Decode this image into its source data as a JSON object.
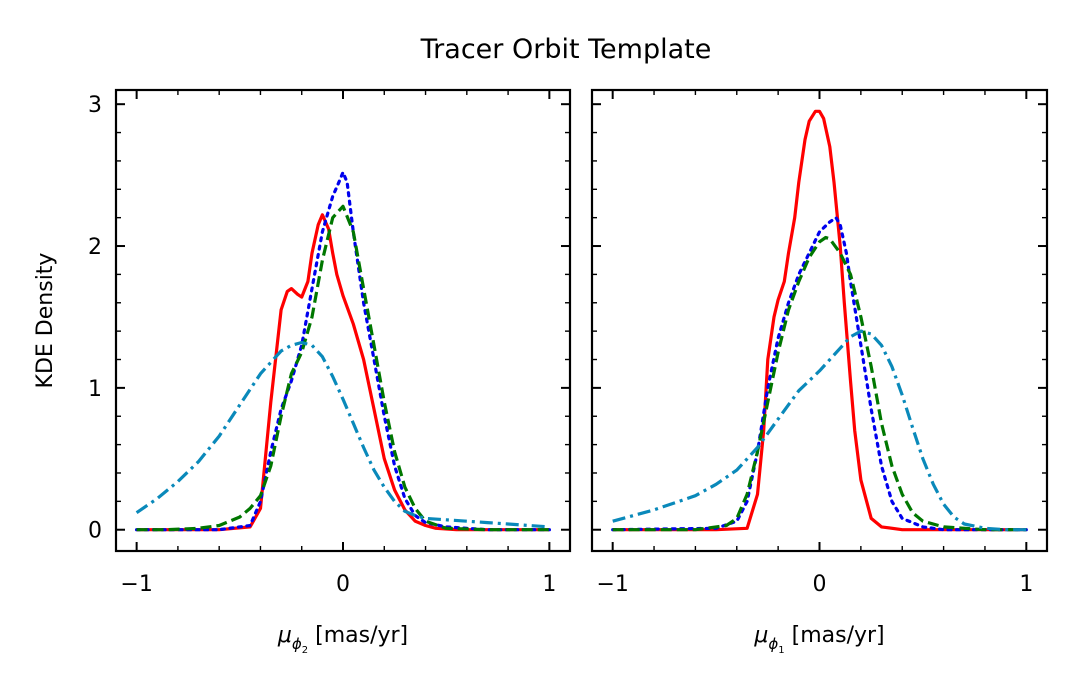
{
  "figure_title": "Tracer Orbit Template",
  "chart_data": [
    {
      "type": "line",
      "panel": "left",
      "xlabel_symbol": "μ",
      "xlabel_subscript": "ϕ",
      "xlabel_subsubscript": "2",
      "xlabel_unit": "[mas/yr]",
      "ylabel": "KDE Density",
      "xlim": [
        -1.1,
        1.1
      ],
      "ylim": [
        -0.15,
        3.1
      ],
      "xticks": [
        -1,
        0,
        1
      ],
      "xtick_labels": [
        "−1",
        "0",
        "1"
      ],
      "yticks": [
        0,
        1,
        2,
        3
      ],
      "ytick_labels": [
        "0",
        "1",
        "2",
        "3"
      ],
      "series": [
        {
          "name": "solid-red",
          "color": "#ff0000",
          "dash": "solid",
          "x": [
            -1.0,
            -0.6,
            -0.45,
            -0.4,
            -0.35,
            -0.3,
            -0.27,
            -0.25,
            -0.22,
            -0.2,
            -0.17,
            -0.15,
            -0.12,
            -0.1,
            -0.07,
            -0.05,
            -0.03,
            0.0,
            0.05,
            0.1,
            0.15,
            0.2,
            0.25,
            0.3,
            0.35,
            0.4,
            0.45,
            0.55,
            0.7,
            1.0
          ],
          "y": [
            0.0,
            0.0,
            0.02,
            0.15,
            0.9,
            1.55,
            1.68,
            1.7,
            1.66,
            1.64,
            1.75,
            1.95,
            2.15,
            2.22,
            2.12,
            1.95,
            1.8,
            1.65,
            1.45,
            1.2,
            0.85,
            0.5,
            0.28,
            0.14,
            0.06,
            0.03,
            0.01,
            0.0,
            0.0,
            0.0
          ]
        },
        {
          "name": "dotted-blue",
          "color": "#0000ee",
          "dash": "dotted",
          "x": [
            -1.0,
            -0.6,
            -0.45,
            -0.4,
            -0.35,
            -0.3,
            -0.25,
            -0.2,
            -0.15,
            -0.1,
            -0.05,
            -0.02,
            0.0,
            0.02,
            0.05,
            0.1,
            0.15,
            0.2,
            0.25,
            0.3,
            0.35,
            0.4,
            0.5,
            0.7,
            1.0
          ],
          "y": [
            0.0,
            0.0,
            0.03,
            0.2,
            0.55,
            0.85,
            1.05,
            1.3,
            1.7,
            2.1,
            2.35,
            2.45,
            2.52,
            2.45,
            2.1,
            1.6,
            1.2,
            0.8,
            0.45,
            0.22,
            0.1,
            0.05,
            0.02,
            0.0,
            0.0
          ]
        },
        {
          "name": "dashed-green",
          "color": "#007700",
          "dash": "dashed",
          "x": [
            -1.0,
            -0.85,
            -0.7,
            -0.6,
            -0.5,
            -0.45,
            -0.4,
            -0.35,
            -0.3,
            -0.25,
            -0.2,
            -0.15,
            -0.1,
            -0.05,
            0.0,
            0.05,
            0.1,
            0.15,
            0.2,
            0.25,
            0.3,
            0.35,
            0.4,
            0.5,
            0.7,
            1.0
          ],
          "y": [
            0.0,
            0.0,
            0.01,
            0.03,
            0.09,
            0.15,
            0.24,
            0.45,
            0.8,
            1.1,
            1.25,
            1.5,
            1.9,
            2.2,
            2.28,
            2.1,
            1.7,
            1.3,
            0.9,
            0.55,
            0.3,
            0.15,
            0.06,
            0.01,
            0.0,
            0.0
          ]
        },
        {
          "name": "dashdot-cyan",
          "color": "#0a89ba",
          "dash": "dashdot",
          "x": [
            -1.0,
            -0.9,
            -0.8,
            -0.7,
            -0.6,
            -0.5,
            -0.4,
            -0.3,
            -0.25,
            -0.2,
            -0.15,
            -0.1,
            -0.05,
            0.0,
            0.05,
            0.1,
            0.15,
            0.2,
            0.25,
            0.3,
            0.35,
            0.4,
            0.5,
            0.6,
            0.7,
            0.8,
            0.9,
            1.0
          ],
          "y": [
            0.12,
            0.22,
            0.34,
            0.48,
            0.66,
            0.88,
            1.1,
            1.26,
            1.3,
            1.32,
            1.3,
            1.22,
            1.08,
            0.92,
            0.75,
            0.58,
            0.42,
            0.3,
            0.2,
            0.13,
            0.1,
            0.08,
            0.07,
            0.06,
            0.05,
            0.04,
            0.03,
            0.02
          ]
        }
      ]
    },
    {
      "type": "line",
      "panel": "right",
      "xlabel_symbol": "μ",
      "xlabel_subscript": "ϕ",
      "xlabel_subsubscript": "1",
      "xlabel_unit": "[mas/yr]",
      "ylabel": "",
      "xlim": [
        -1.1,
        1.1
      ],
      "ylim": [
        -0.15,
        3.1
      ],
      "xticks": [
        -1,
        0,
        1
      ],
      "xtick_labels": [
        "−1",
        "0",
        "1"
      ],
      "yticks": [
        0,
        1,
        2,
        3
      ],
      "ytick_labels": [
        "",
        "",
        "",
        ""
      ],
      "series": [
        {
          "name": "solid-red",
          "color": "#ff0000",
          "dash": "solid",
          "x": [
            -1.0,
            -0.5,
            -0.35,
            -0.3,
            -0.27,
            -0.25,
            -0.22,
            -0.2,
            -0.17,
            -0.15,
            -0.12,
            -0.1,
            -0.07,
            -0.05,
            -0.02,
            0.0,
            0.02,
            0.05,
            0.07,
            0.1,
            0.12,
            0.15,
            0.17,
            0.2,
            0.25,
            0.3,
            0.4,
            1.0
          ],
          "y": [
            0.0,
            0.0,
            0.01,
            0.25,
            0.7,
            1.2,
            1.5,
            1.62,
            1.75,
            1.95,
            2.2,
            2.45,
            2.75,
            2.88,
            2.95,
            2.95,
            2.9,
            2.7,
            2.45,
            2.0,
            1.6,
            1.05,
            0.7,
            0.35,
            0.08,
            0.02,
            0.0,
            0.0
          ]
        },
        {
          "name": "dotted-blue",
          "color": "#0000ee",
          "dash": "dotted",
          "x": [
            -1.0,
            -0.5,
            -0.4,
            -0.35,
            -0.3,
            -0.25,
            -0.2,
            -0.15,
            -0.1,
            -0.05,
            0.0,
            0.05,
            0.08,
            0.1,
            0.13,
            0.15,
            0.2,
            0.25,
            0.3,
            0.35,
            0.4,
            0.5,
            0.6,
            0.8,
            1.0
          ],
          "y": [
            0.0,
            0.01,
            0.06,
            0.2,
            0.55,
            1.0,
            1.35,
            1.6,
            1.8,
            1.95,
            2.1,
            2.17,
            2.2,
            2.15,
            1.95,
            1.75,
            1.3,
            0.85,
            0.45,
            0.2,
            0.08,
            0.02,
            0.0,
            0.0,
            0.0
          ]
        },
        {
          "name": "dashed-green",
          "color": "#007700",
          "dash": "dashed",
          "x": [
            -1.0,
            -0.6,
            -0.45,
            -0.4,
            -0.35,
            -0.3,
            -0.25,
            -0.2,
            -0.15,
            -0.1,
            -0.05,
            0.0,
            0.03,
            0.05,
            0.1,
            0.15,
            0.2,
            0.25,
            0.3,
            0.35,
            0.4,
            0.45,
            0.5,
            0.6,
            0.8,
            1.0
          ],
          "y": [
            0.0,
            0.0,
            0.03,
            0.08,
            0.25,
            0.55,
            0.9,
            1.25,
            1.55,
            1.75,
            1.92,
            2.03,
            2.06,
            2.05,
            1.95,
            1.8,
            1.5,
            1.15,
            0.75,
            0.45,
            0.25,
            0.12,
            0.06,
            0.02,
            0.0,
            0.0
          ]
        },
        {
          "name": "dashdot-cyan",
          "color": "#0a89ba",
          "dash": "dashdot",
          "x": [
            -1.0,
            -0.8,
            -0.6,
            -0.5,
            -0.4,
            -0.3,
            -0.2,
            -0.1,
            0.0,
            0.1,
            0.15,
            0.2,
            0.25,
            0.3,
            0.35,
            0.4,
            0.45,
            0.5,
            0.55,
            0.6,
            0.65,
            0.7,
            0.8,
            0.9,
            1.0
          ],
          "y": [
            0.06,
            0.14,
            0.24,
            0.32,
            0.42,
            0.58,
            0.78,
            0.98,
            1.12,
            1.28,
            1.36,
            1.4,
            1.38,
            1.3,
            1.15,
            0.95,
            0.72,
            0.5,
            0.32,
            0.18,
            0.09,
            0.04,
            0.01,
            0.0,
            0.0
          ]
        }
      ]
    }
  ]
}
